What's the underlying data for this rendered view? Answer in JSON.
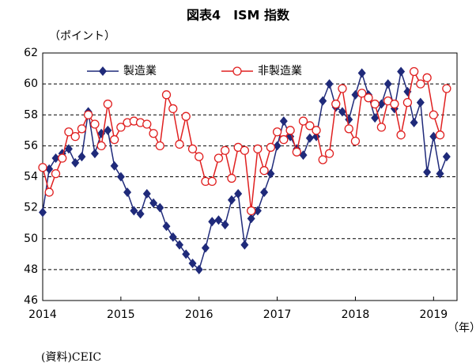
{
  "chart_data": {
    "type": "line",
    "title": "図表4　ISM 指数",
    "y_label": "（ポイント）",
    "x_label": "（年）",
    "source": "(資料)CEIC",
    "xlim": [
      2014,
      2019.3
    ],
    "xticks": [
      2014,
      2015,
      2016,
      2017,
      2018,
      2019
    ],
    "ylim": [
      46,
      62
    ],
    "yticks": [
      46,
      48,
      50,
      52,
      54,
      56,
      58,
      60,
      62
    ],
    "grid": true,
    "legend": "top",
    "x": [
      2014,
      2014.083,
      2014.167,
      2014.25,
      2014.333,
      2014.417,
      2014.5,
      2014.583,
      2014.667,
      2014.75,
      2014.833,
      2014.917,
      2015,
      2015.083,
      2015.167,
      2015.25,
      2015.333,
      2015.417,
      2015.5,
      2015.583,
      2015.667,
      2015.75,
      2015.833,
      2015.917,
      2016,
      2016.083,
      2016.167,
      2016.25,
      2016.333,
      2016.417,
      2016.5,
      2016.583,
      2016.667,
      2016.75,
      2016.833,
      2016.917,
      2017,
      2017.083,
      2017.167,
      2017.25,
      2017.333,
      2017.417,
      2017.5,
      2017.583,
      2017.667,
      2017.75,
      2017.833,
      2017.917,
      2018,
      2018.083,
      2018.167,
      2018.25,
      2018.333,
      2018.417,
      2018.5,
      2018.583,
      2018.667,
      2018.75,
      2018.833,
      2018.917,
      2019,
      2019.083,
      2019.167
    ],
    "series": [
      {
        "name": "製造業",
        "color": "#1f2a7a",
        "marker": "diamond",
        "values": [
          51.7,
          54.5,
          55.2,
          55.5,
          55.8,
          54.9,
          55.3,
          58.2,
          55.5,
          56.8,
          57.0,
          54.7,
          54.0,
          53.0,
          51.8,
          51.6,
          52.9,
          52.3,
          52.0,
          50.8,
          50.1,
          49.6,
          49.0,
          48.4,
          48.0,
          49.4,
          51.1,
          51.2,
          50.9,
          52.5,
          52.9,
          49.6,
          51.3,
          51.8,
          53.0,
          54.2,
          56.0,
          57.6,
          56.6,
          55.8,
          55.4,
          56.5,
          56.6,
          58.9,
          60.0,
          58.5,
          58.2,
          57.7,
          59.3,
          60.7,
          59.3,
          57.8,
          58.7,
          60.0,
          58.4,
          60.8,
          59.5,
          57.5,
          58.8,
          54.3,
          56.6,
          54.2,
          55.3
        ]
      },
      {
        "name": "非製造業",
        "color": "#e02020",
        "marker": "circle",
        "values": [
          54.6,
          53.0,
          54.2,
          55.2,
          56.9,
          56.6,
          57.1,
          58.0,
          57.4,
          56.0,
          58.7,
          56.4,
          57.2,
          57.5,
          57.6,
          57.5,
          57.4,
          56.8,
          56.0,
          59.3,
          58.4,
          56.1,
          57.9,
          55.8,
          55.3,
          53.7,
          53.7,
          55.2,
          55.7,
          53.9,
          55.9,
          55.7,
          51.8,
          55.8,
          54.4,
          55.9,
          56.9,
          56.4,
          57.0,
          55.6,
          57.6,
          57.3,
          57.0,
          55.1,
          55.5,
          58.7,
          59.7,
          57.1,
          56.3,
          59.4,
          59.1,
          58.7,
          57.2,
          58.9,
          58.7,
          56.7,
          58.8,
          60.8,
          60.0,
          60.4,
          58.0,
          56.7,
          59.7
        ]
      }
    ]
  }
}
